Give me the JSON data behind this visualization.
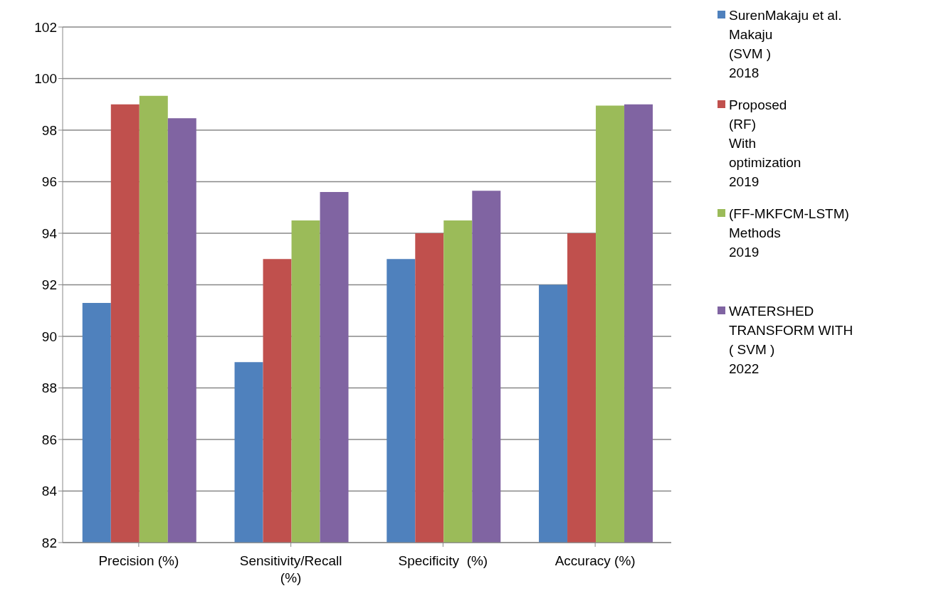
{
  "chart_data": {
    "type": "bar",
    "categories": [
      "Precision (%)",
      "Sensitivity/Recall (%)",
      "Specificity  (%)",
      "Accuracy (%)"
    ],
    "series": [
      {
        "name": "SurenMakaju et al.\nMakaju\n (SVM )\n2018",
        "color": "#4f81bd",
        "values": [
          91.3,
          89,
          93,
          92
        ]
      },
      {
        "name": "Proposed\n(RF)\nWith\noptimization\n2019",
        "color": "#c0504d",
        "values": [
          99,
          93,
          94,
          94
        ]
      },
      {
        "name": "(FF-MKFCM-LSTM)\nMethods\n2019",
        "color": "#9bbb59",
        "values": [
          99.33,
          94.5,
          94.5,
          98.95
        ]
      },
      {
        "name": "WATERSHED\nTRANSFORM WITH\n( SVM )\n2022",
        "color": "#8064a2",
        "values": [
          98.46,
          95.6,
          95.65,
          99
        ]
      }
    ],
    "ylim": [
      82,
      102
    ],
    "yticks": [
      82,
      84,
      86,
      88,
      90,
      92,
      94,
      96,
      98,
      100,
      102
    ],
    "grid": "y",
    "legend": "right"
  }
}
